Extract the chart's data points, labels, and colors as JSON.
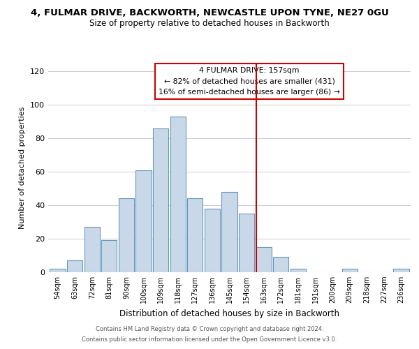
{
  "title": "4, FULMAR DRIVE, BACKWORTH, NEWCASTLE UPON TYNE, NE27 0GU",
  "subtitle": "Size of property relative to detached houses in Backworth",
  "xlabel": "Distribution of detached houses by size in Backworth",
  "ylabel": "Number of detached properties",
  "bar_labels": [
    "54sqm",
    "63sqm",
    "72sqm",
    "81sqm",
    "90sqm",
    "100sqm",
    "109sqm",
    "118sqm",
    "127sqm",
    "136sqm",
    "145sqm",
    "154sqm",
    "163sqm",
    "172sqm",
    "181sqm",
    "191sqm",
    "200sqm",
    "209sqm",
    "218sqm",
    "227sqm",
    "236sqm"
  ],
  "bar_values": [
    2,
    7,
    27,
    19,
    44,
    61,
    86,
    93,
    44,
    38,
    48,
    35,
    15,
    9,
    2,
    0,
    0,
    2,
    0,
    0,
    2
  ],
  "bar_color": "#c8d8e8",
  "bar_edge_color": "#6699bb",
  "vline_x": 12.0,
  "vline_color": "#cc0000",
  "annotation_title": "4 FULMAR DRIVE: 157sqm",
  "annotation_line1": "← 82% of detached houses are smaller (431)",
  "annotation_line2": "16% of semi-detached houses are larger (86) →",
  "annotation_box_color": "#ffffff",
  "annotation_box_edge": "#cc0000",
  "ylim": [
    0,
    125
  ],
  "footer1": "Contains HM Land Registry data © Crown copyright and database right 2024.",
  "footer2": "Contains public sector information licensed under the Open Government Licence v3.0.",
  "background_color": "#ffffff",
  "grid_color": "#cccccc"
}
